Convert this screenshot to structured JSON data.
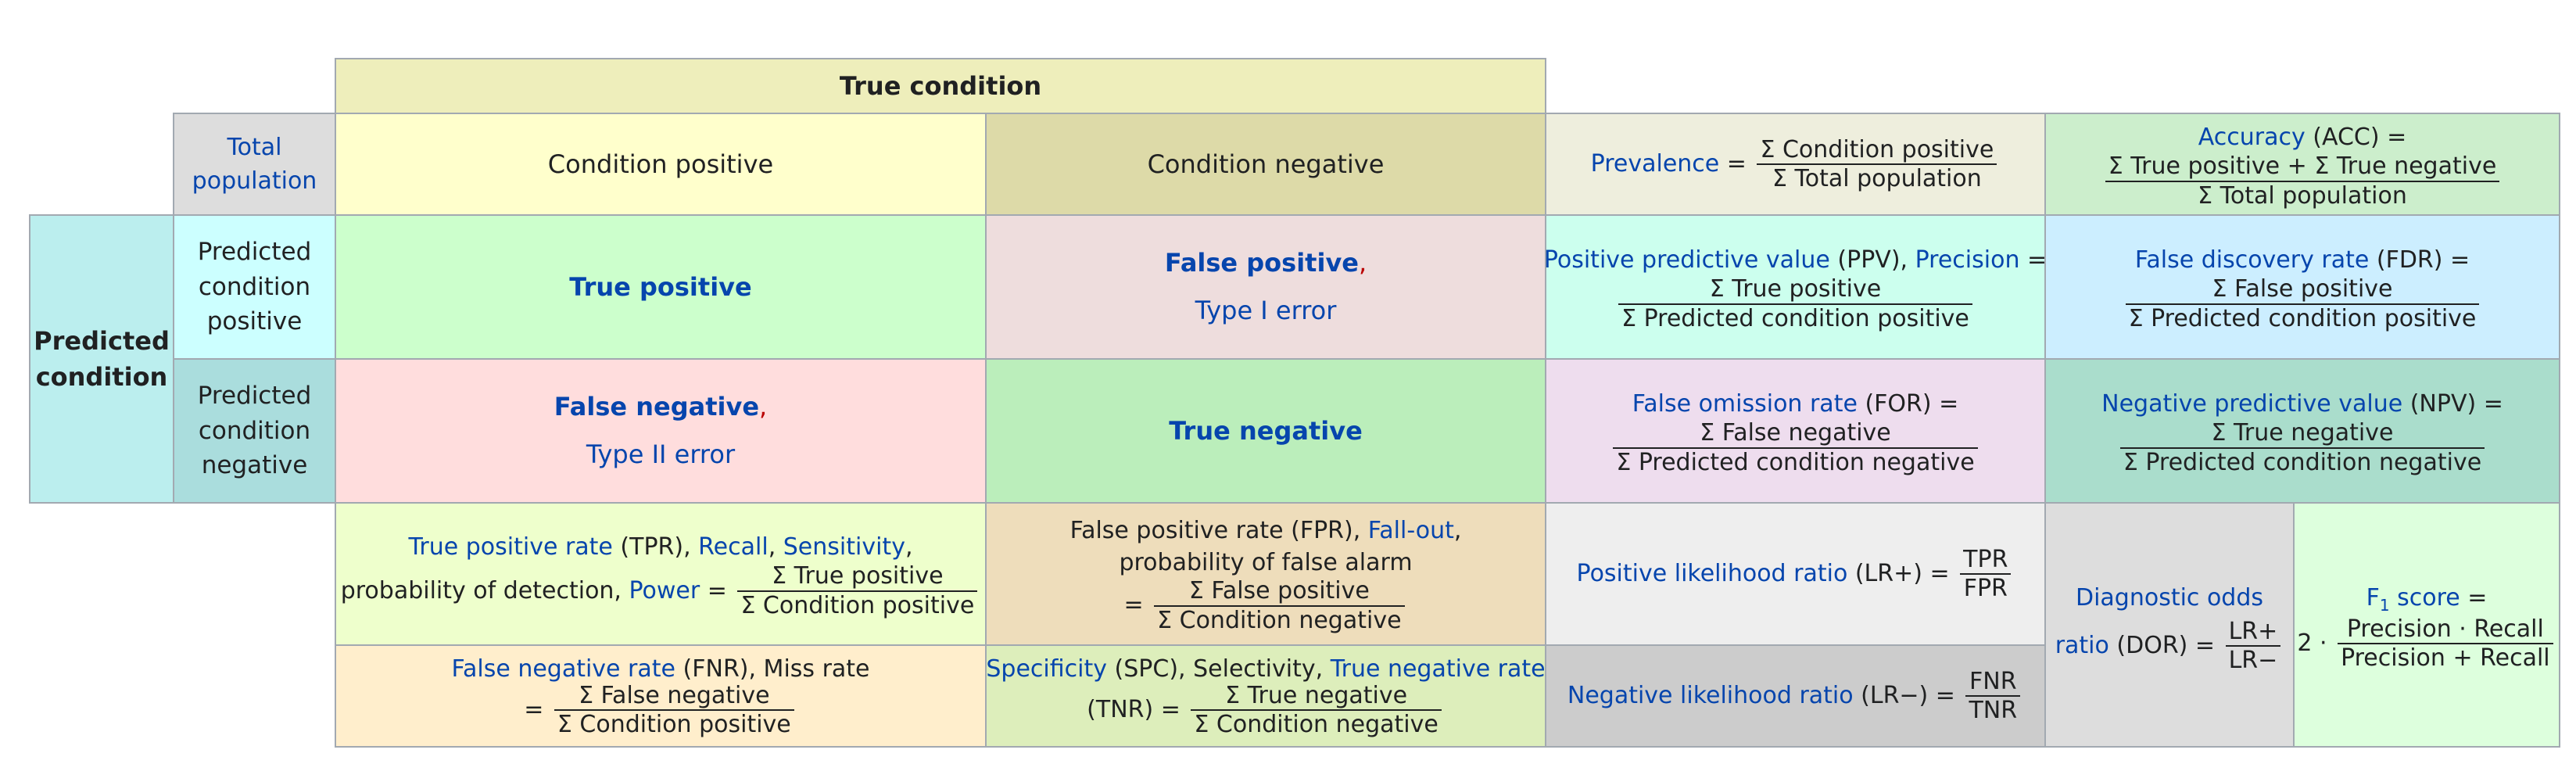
{
  "header": {
    "true_condition": "True condition"
  },
  "total_population": {
    "line1": "Total",
    "line2": "population"
  },
  "columns": {
    "condition_positive": "Condition positive",
    "condition_negative": "Condition negative"
  },
  "predicted_condition": {
    "line1": "Predicted",
    "line2": "condition"
  },
  "rows": {
    "predicted_positive": {
      "line1": "Predicted",
      "line2": "condition",
      "line3": "positive"
    },
    "predicted_negative": {
      "line1": "Predicted",
      "line2": "condition",
      "line3": "negative"
    }
  },
  "cells": {
    "true_positive": "True positive",
    "false_positive": "False positive",
    "false_positive_comma": ",",
    "type1": "Type I error",
    "false_negative": "False negative",
    "false_negative_comma": ",",
    "type2": "Type II error",
    "true_negative": "True negative"
  },
  "prevalence": {
    "label": "Prevalence",
    "eq": " = ",
    "num": "Σ Condition positive",
    "den": "Σ Total population"
  },
  "accuracy": {
    "label": "Accuracy",
    "abbr": " (ACC) =",
    "num": "Σ True positive + Σ True negative",
    "den": "Σ Total population"
  },
  "ppv": {
    "label": "Positive predictive value",
    "abbr": " (PPV), ",
    "label2": "Precision",
    "eq": " =",
    "num": "Σ True positive",
    "den": "Σ Predicted condition positive"
  },
  "fdr": {
    "label": "False discovery rate",
    "abbr": " (FDR) =",
    "num": "Σ False positive",
    "den": "Σ Predicted condition positive"
  },
  "for": {
    "label": "False omission rate",
    "abbr": " (FOR) =",
    "num": "Σ False negative",
    "den": "Σ Predicted condition negative"
  },
  "npv": {
    "label": "Negative predictive value",
    "abbr": " (NPV) =",
    "num": "Σ True negative",
    "den": "Σ Predicted condition negative"
  },
  "tpr": {
    "label": "True positive rate",
    "abbr": " (TPR), ",
    "recall": "Recall",
    "sep": ", ",
    "sensitivity": "Sensitivity",
    "comma": ",",
    "line2": "probability of detection, ",
    "power": "Power",
    "eq": " = ",
    "num": "Σ True positive",
    "den": "Σ Condition positive"
  },
  "fpr": {
    "label": "False positive rate",
    "abbr": " (FPR), ",
    "fallout": "Fall-out",
    "comma": ",",
    "line2": "probability of false alarm",
    "eq": "= ",
    "num": "Σ False positive",
    "den": "Σ Condition negative"
  },
  "lrplus": {
    "label": "Positive likelihood ratio",
    "abbr": " (LR+) = ",
    "num": "TPR",
    "den": "FPR"
  },
  "dor": {
    "label1": "Diagnostic odds",
    "label2": "ratio",
    "abbr": " (DOR) = ",
    "num": "LR+",
    "den": "LR−"
  },
  "f1": {
    "label": "F",
    "sub": "1",
    "label_rest": " score",
    "eq": " =",
    "factor": "2 · ",
    "num": "Precision · Recall",
    "den": "Precision + Recall"
  },
  "fnr": {
    "label": "False negative rate",
    "abbr": " (FNR), Miss rate",
    "eq": "= ",
    "num": "Σ False negative",
    "den": "Σ Condition positive"
  },
  "spc": {
    "label": "Specificity",
    "abbr": " (SPC), Selectivity, ",
    "tnr": "True negative rate",
    "line2": "(TNR) = ",
    "num": "Σ True negative",
    "den": "Σ Condition negative"
  },
  "lrminus": {
    "label": "Negative likelihood ratio",
    "abbr": " (LR−) = ",
    "num": "FNR",
    "den": "TNR"
  },
  "colors": {
    "true_condition": "#eeeebb",
    "total_population": "#dddddd",
    "cond_pos": "#ffffcc",
    "cond_neg": "#dddaa8",
    "predicted_condition": "#bbeeee",
    "pred_pos": "#ccffff",
    "pred_neg": "#aadddd",
    "tp": "#ccffcc",
    "fp": "#eedddd",
    "fn": "#ffdddd",
    "tn": "#bbeebb",
    "prevalence": "#eeeedd",
    "accuracy": "#cceecc",
    "ppv": "#ccffee",
    "fdr": "#cceeff",
    "for": "#eeddee",
    "npv": "#aaddcc",
    "tpr": "#eeffcc",
    "fpr": "#eeddbb",
    "lrplus": "#eeeeee",
    "lrminus": "#cccccc",
    "dor": "#dddddd",
    "f1": "#ddffdd",
    "fnr": "#ffeecc",
    "spc": "#ddeebb"
  }
}
